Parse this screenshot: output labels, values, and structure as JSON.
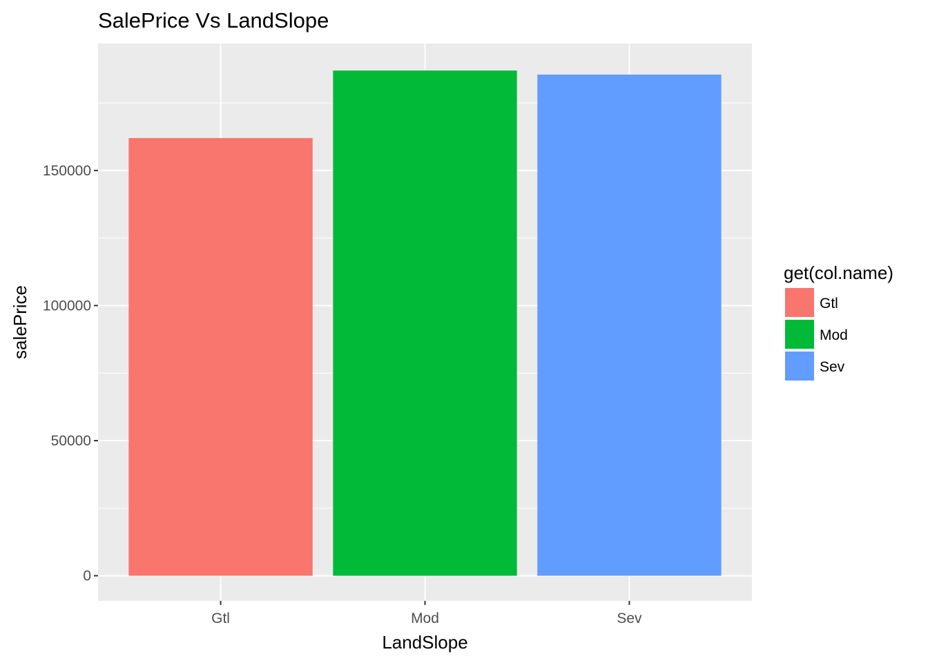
{
  "chart_data": {
    "type": "bar",
    "title": "SalePrice Vs LandSlope",
    "xlabel": "LandSlope",
    "ylabel": "salePrice",
    "categories": [
      "Gtl",
      "Mod",
      "Sev"
    ],
    "values": [
      162000,
      187000,
      185500
    ],
    "colors": [
      "#F8766D",
      "#00BA38",
      "#619CFF"
    ],
    "ylim": [
      -9300,
      197000
    ],
    "yticks": [
      0,
      50000,
      100000,
      150000
    ],
    "ytick_labels": [
      "0",
      "50000",
      "100000",
      "150000"
    ],
    "grid": true,
    "panel_background": "#EBEBEB",
    "legend": {
      "title": "get(col.name)",
      "placement": "right",
      "entries": [
        "Gtl",
        "Mod",
        "Sev"
      ]
    }
  }
}
